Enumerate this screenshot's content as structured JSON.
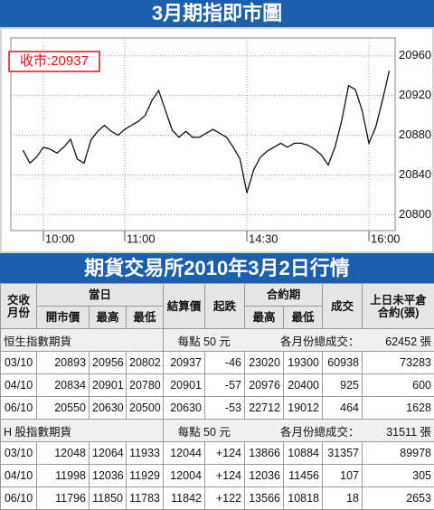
{
  "header": {
    "title": "3月期指即市圖"
  },
  "chart_data": {
    "type": "line",
    "annotation": "收市:20937",
    "color": "#111111",
    "categories": [
      null,
      null,
      null,
      "10:00",
      null,
      null,
      null,
      null,
      null,
      null,
      null,
      null,
      null,
      null,
      null,
      "11:00",
      null,
      null,
      null,
      null,
      null,
      null,
      null,
      null,
      null,
      null,
      null,
      null,
      null,
      null,
      null,
      null,
      null,
      "14:30",
      null,
      null,
      null,
      null,
      null,
      null,
      null,
      null,
      null,
      null,
      null,
      null,
      null,
      null,
      null,
      null,
      null,
      "16:00",
      null,
      null,
      null
    ],
    "values": [
      20865,
      20852,
      20858,
      20868,
      20866,
      20862,
      20868,
      20876,
      20856,
      20852,
      20875,
      20884,
      20890,
      20884,
      20880,
      20886,
      20890,
      20894,
      20900,
      20915,
      20925,
      20905,
      20885,
      20878,
      20884,
      20878,
      20878,
      20882,
      20886,
      20882,
      20878,
      20868,
      20856,
      20822,
      20845,
      20858,
      20864,
      20868,
      20872,
      20868,
      20872,
      20872,
      20870,
      20866,
      20860,
      20850,
      20868,
      20895,
      20930,
      20926,
      20905,
      20872,
      20888,
      20915,
      20945
    ],
    "ylim": [
      20784,
      20978
    ],
    "yticks": [
      20800,
      20840,
      20880,
      20920,
      20960
    ],
    "grid": true
  },
  "section_title": "期貨交易所2010年3月2日行情",
  "table": {
    "head": {
      "month": [
        "交收",
        "月份"
      ],
      "day": "當日",
      "day_cols": [
        "開市價",
        "最高",
        "最低"
      ],
      "settle": "結算價",
      "change": "起跌",
      "contract": "合約期",
      "contract_cols": [
        "最高",
        "最低"
      ],
      "volume": "成交",
      "oi": [
        "上日未平倉",
        "合約(張)"
      ]
    },
    "groups": [
      {
        "name": "恒生指數期貨",
        "unit": "每點 50 元",
        "total_label": "各月份總成交：",
        "total": "62452 張",
        "rows": [
          [
            "03/10",
            "20893",
            "20956",
            "20802",
            "20937",
            "-46",
            "23020",
            "19300",
            "60938",
            "73283"
          ],
          [
            "04/10",
            "20834",
            "20901",
            "20780",
            "20901",
            "-57",
            "20976",
            "20400",
            "925",
            "600"
          ],
          [
            "06/10",
            "20550",
            "20630",
            "20500",
            "20630",
            "-53",
            "22712",
            "19012",
            "464",
            "1628"
          ]
        ]
      },
      {
        "name": "H 股指數期貨",
        "unit": "每點 50 元",
        "total_label": "各月份總成交：",
        "total": "31511 張",
        "rows": [
          [
            "03/10",
            "12048",
            "12064",
            "11933",
            "12044",
            "+124",
            "13866",
            "10884",
            "31357",
            "89978"
          ],
          [
            "04/10",
            "11998",
            "12036",
            "11929",
            "12004",
            "+124",
            "12036",
            "11456",
            "107",
            "305"
          ],
          [
            "06/10",
            "11796",
            "11850",
            "11783",
            "11842",
            "+122",
            "13566",
            "10818",
            "18",
            "2653"
          ]
        ]
      }
    ]
  }
}
